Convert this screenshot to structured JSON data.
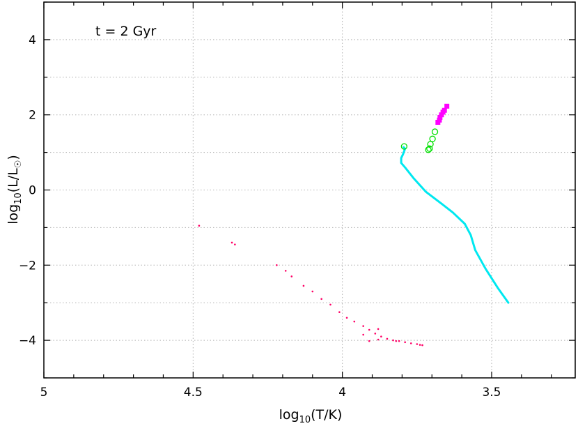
{
  "chart_data": {
    "type": "scatter",
    "title": "",
    "annotation": "t = 2 Gyr",
    "xlabel": {
      "prefix": "log",
      "sub": "10",
      "body": "(T/K)"
    },
    "ylabel": {
      "prefix": "log",
      "sub": "10",
      "body": "(L/L",
      "sun": "☉",
      "close": ")"
    },
    "xlim": [
      5.0,
      3.22
    ],
    "ylim": [
      -5.0,
      5.0
    ],
    "x_ticks": [
      5,
      4.5,
      4,
      3.5
    ],
    "x_tick_labels": [
      "5",
      "4.5",
      "4",
      "3.5"
    ],
    "y_ticks": [
      -4,
      -2,
      0,
      2,
      4
    ],
    "y_tick_labels": [
      "−4",
      "−2",
      "0",
      "2",
      "4"
    ],
    "grid": true,
    "colors": {
      "main_sequence": "#00e8f0",
      "giants": "#00e000",
      "agb": "#ff00ff",
      "white_dwarfs": "#ff0066"
    },
    "series": [
      {
        "id": "main-sequence",
        "style": "line",
        "color": "#00e8f0",
        "points": [
          [
            3.444,
            -3.0
          ],
          [
            3.48,
            -2.6
          ],
          [
            3.52,
            -2.1
          ],
          [
            3.555,
            -1.6
          ],
          [
            3.57,
            -1.2
          ],
          [
            3.59,
            -0.9
          ],
          [
            3.63,
            -0.6
          ],
          [
            3.67,
            -0.35
          ],
          [
            3.72,
            -0.05
          ],
          [
            3.76,
            0.3
          ],
          [
            3.79,
            0.6
          ],
          [
            3.803,
            0.72
          ],
          [
            3.803,
            0.85
          ],
          [
            3.797,
            0.95
          ],
          [
            3.79,
            1.1
          ],
          [
            3.795,
            1.14
          ]
        ]
      },
      {
        "id": "giants",
        "style": "open-circle",
        "color": "#00e000",
        "points": [
          [
            3.793,
            1.16
          ],
          [
            3.712,
            1.07
          ],
          [
            3.708,
            1.1
          ],
          [
            3.705,
            1.22
          ],
          [
            3.698,
            1.36
          ],
          [
            3.69,
            1.55
          ]
        ]
      },
      {
        "id": "agb",
        "style": "filled-square",
        "color": "#ff00ff",
        "points": [
          [
            3.68,
            1.8
          ],
          [
            3.675,
            1.86
          ],
          [
            3.673,
            1.93
          ],
          [
            3.668,
            2.0
          ],
          [
            3.663,
            2.07
          ],
          [
            3.658,
            2.12
          ],
          [
            3.65,
            2.23
          ]
        ]
      },
      {
        "id": "white-dwarfs",
        "style": "dot",
        "color": "#ff0066",
        "points": [
          [
            4.48,
            -0.95
          ],
          [
            4.37,
            -1.4
          ],
          [
            4.36,
            -1.45
          ],
          [
            4.22,
            -2.0
          ],
          [
            4.19,
            -2.15
          ],
          [
            4.17,
            -2.3
          ],
          [
            4.13,
            -2.55
          ],
          [
            4.1,
            -2.7
          ],
          [
            4.07,
            -2.9
          ],
          [
            4.04,
            -3.05
          ],
          [
            4.01,
            -3.25
          ],
          [
            3.985,
            -3.4
          ],
          [
            3.96,
            -3.5
          ],
          [
            3.93,
            -3.62
          ],
          [
            3.91,
            -3.72
          ],
          [
            3.89,
            -3.82
          ],
          [
            3.87,
            -3.9
          ],
          [
            3.85,
            -3.96
          ],
          [
            3.83,
            -4.0
          ],
          [
            3.81,
            -4.02
          ],
          [
            3.79,
            -4.05
          ],
          [
            3.77,
            -4.08
          ],
          [
            3.75,
            -4.1
          ],
          [
            3.74,
            -4.12
          ],
          [
            3.732,
            -4.13
          ],
          [
            3.88,
            -3.7
          ],
          [
            3.93,
            -3.85
          ],
          [
            3.91,
            -4.02
          ],
          [
            3.88,
            -3.98
          ],
          [
            3.82,
            -4.02
          ]
        ]
      }
    ]
  }
}
